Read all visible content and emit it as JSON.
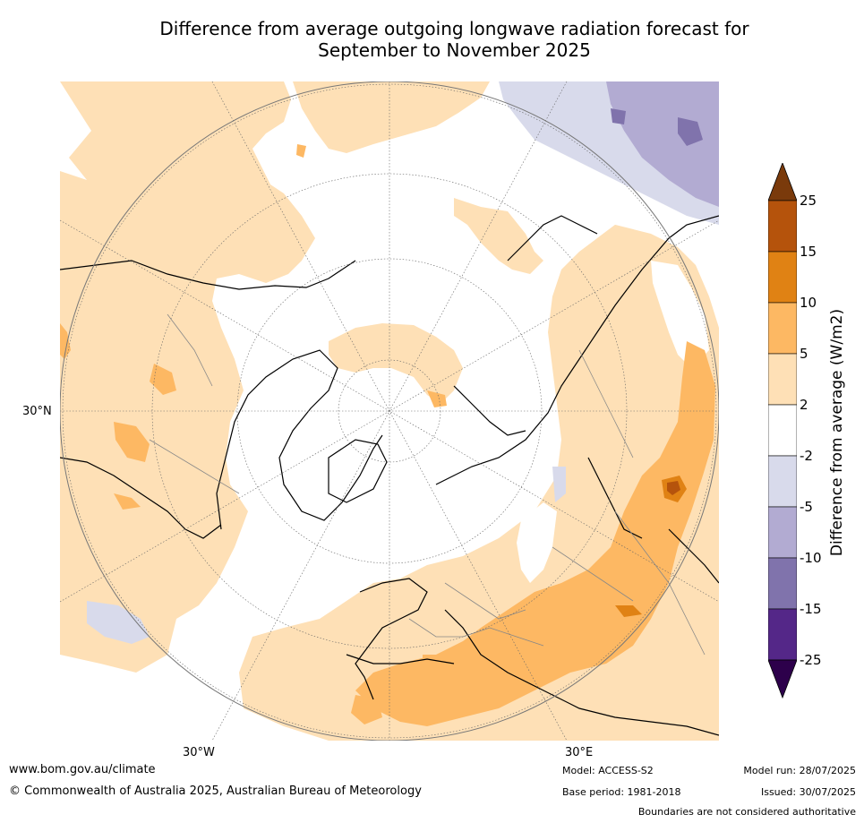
{
  "title_line1": "Difference from average outgoing longwave radiation forecast for",
  "title_line2": "September to November 2025",
  "map": {
    "lat_label": "30°N",
    "lon_label_west": "30°W",
    "lon_label_east": "30°E",
    "projection": "north polar stereographic"
  },
  "legend": {
    "title": "Difference from average (W/m2)",
    "ticks": [
      "25",
      "15",
      "10",
      "5",
      "2",
      "-2",
      "-5",
      "-10",
      "-15",
      "-25"
    ],
    "colors": [
      "#7a3a0b",
      "#b5530c",
      "#e08214",
      "#fdb863",
      "#fee0b6",
      "#ffffff",
      "#d8daeb",
      "#b2abd2",
      "#8073ac",
      "#542788",
      "#2d004b"
    ]
  },
  "footer": {
    "url": "www.bom.gov.au/climate",
    "copyright": "© Commonwealth of Australia 2025, Australian Bureau of Meteorology",
    "model": "Model: ACCESS-S2",
    "base_period": "Base period: 1981-2018",
    "model_run": "Model run: 28/07/2025",
    "issued": "Issued: 30/07/2025",
    "disclaimer": "Boundaries are not considered authoritative"
  }
}
